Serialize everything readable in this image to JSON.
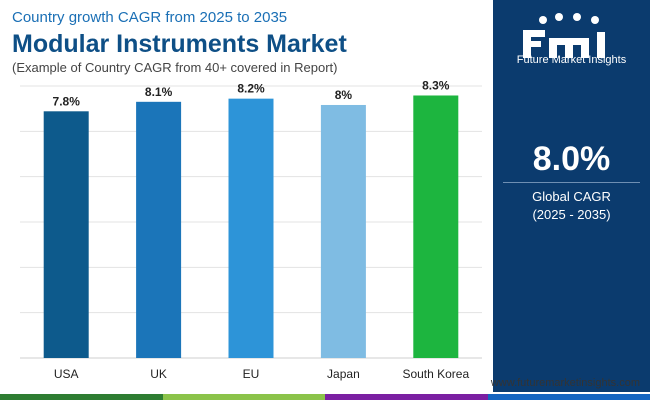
{
  "header": {
    "kicker": "Country growth CAGR from 2025 to 2035",
    "title": "Modular Instruments Market",
    "subtitle": "(Example of Country CAGR from 40+ covered in Report)"
  },
  "side_panel": {
    "brand": "Future Market Insights",
    "kpi_value": "8.0%",
    "kpi_label": "Global CAGR",
    "kpi_period": "(2025 - 2035)"
  },
  "website": "www.futuremarketinsights.com",
  "colors": {
    "panel": "#0b3b6e",
    "strip": [
      "#2e7d32",
      "#8bc34a",
      "#7b1fa2",
      "#1565c0"
    ]
  },
  "chart_data": {
    "type": "bar",
    "categories": [
      "USA",
      "UK",
      "EU",
      "Japan",
      "South Korea"
    ],
    "values": [
      7.8,
      8.1,
      8.2,
      8.0,
      8.3
    ],
    "data_labels": [
      "7.8%",
      "8.1%",
      "8.2%",
      "8%",
      "8.3%"
    ],
    "colors": [
      "#0d5a8c",
      "#1b75b9",
      "#2d94d8",
      "#7fbce3",
      "#1db53f"
    ],
    "ylim": [
      0,
      8.6
    ],
    "grid": true,
    "xlabel": "",
    "ylabel": ""
  }
}
